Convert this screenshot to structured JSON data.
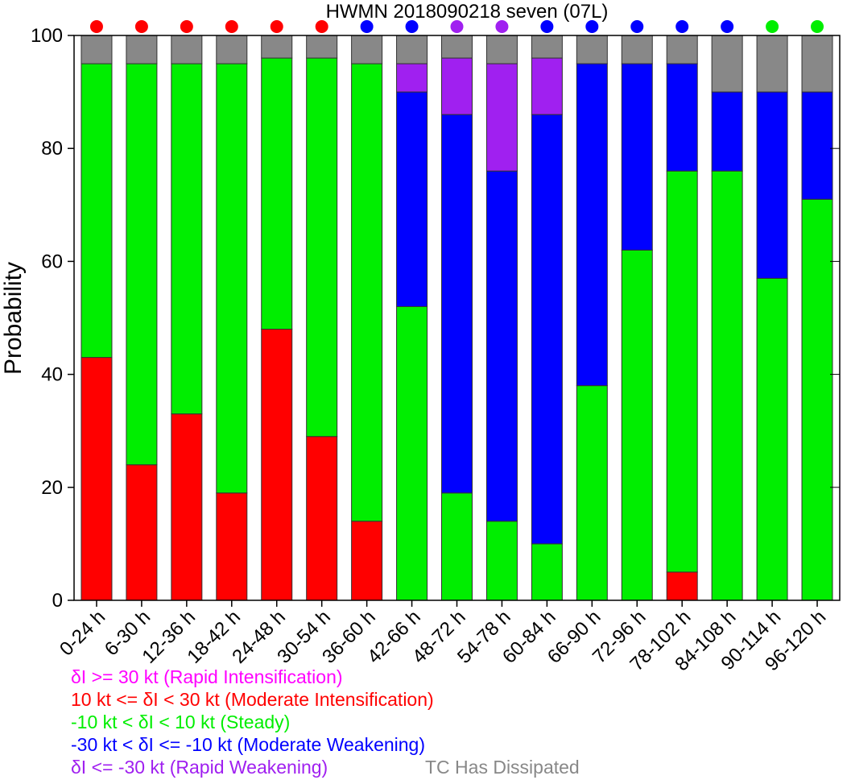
{
  "chart_data": {
    "type": "bar",
    "stacked": true,
    "title": "HWMN 2018090218 seven (07L)",
    "ylabel": "Probability",
    "xlabel": "",
    "ylim": [
      0,
      100
    ],
    "yticks": [
      "0",
      "20",
      "40",
      "60",
      "80",
      "100"
    ],
    "categories": [
      "0-24 h",
      "6-30 h",
      "12-36 h",
      "18-42 h",
      "24-48 h",
      "30-54 h",
      "36-60 h",
      "42-66 h",
      "48-72 h",
      "54-78 h",
      "60-84 h",
      "66-90 h",
      "72-96 h",
      "78-102 h",
      "84-108 h",
      "90-114 h",
      "96-120 h"
    ],
    "series": [
      {
        "key": "rapid_intensification",
        "color": "#ff00ff",
        "values": [
          0,
          0,
          0,
          0,
          0,
          0,
          0,
          0,
          0,
          0,
          0,
          0,
          0,
          0,
          0,
          0,
          0
        ]
      },
      {
        "key": "moderate_intensification",
        "color": "#ff0000",
        "values": [
          43,
          24,
          33,
          19,
          48,
          29,
          14,
          0,
          0,
          0,
          0,
          0,
          0,
          5,
          0,
          0,
          0
        ]
      },
      {
        "key": "steady",
        "color": "#00ee00",
        "values": [
          52,
          71,
          62,
          76,
          48,
          67,
          81,
          52,
          19,
          14,
          10,
          38,
          62,
          71,
          76,
          57,
          71
        ]
      },
      {
        "key": "moderate_weakening",
        "color": "#0000ff",
        "values": [
          0,
          0,
          0,
          0,
          0,
          0,
          0,
          38,
          67,
          62,
          76,
          57,
          33,
          19,
          14,
          33,
          19
        ]
      },
      {
        "key": "rapid_weakening",
        "color": "#a020f0",
        "values": [
          0,
          0,
          0,
          0,
          0,
          0,
          0,
          5,
          10,
          19,
          10,
          0,
          0,
          0,
          0,
          0,
          0
        ]
      },
      {
        "key": "dissipated",
        "color": "#888888",
        "values": [
          5,
          5,
          5,
          5,
          4,
          4,
          5,
          5,
          4,
          5,
          4,
          5,
          5,
          5,
          10,
          10,
          10
        ]
      }
    ],
    "top_markers": [
      "red",
      "red",
      "red",
      "red",
      "red",
      "red",
      "blue",
      "blue",
      "purple",
      "purple",
      "blue",
      "blue",
      "blue",
      "blue",
      "blue",
      "green",
      "green"
    ],
    "marker_colors": {
      "red": "#ff0000",
      "blue": "#0000ff",
      "purple": "#a020f0",
      "green": "#00ee00"
    },
    "legend": {
      "placement": "bottom-left",
      "entries": [
        {
          "text": "δI >= 30 kt (Rapid Intensification)",
          "color": "#ff00ff"
        },
        {
          "text": "10 kt <= δI < 30 kt (Moderate Intensification)",
          "color": "#ff0000"
        },
        {
          "text": "-10 kt < δI < 10 kt (Steady)",
          "color": "#00ee00"
        },
        {
          "text": "-30 kt < δI <= -10 kt (Moderate Weakening)",
          "color": "#0000ff"
        },
        {
          "text": "δI <= -30 kt (Rapid Weakening)",
          "color": "#a020f0"
        },
        {
          "text": "TC Has Dissipated",
          "color": "#888888"
        }
      ]
    }
  }
}
